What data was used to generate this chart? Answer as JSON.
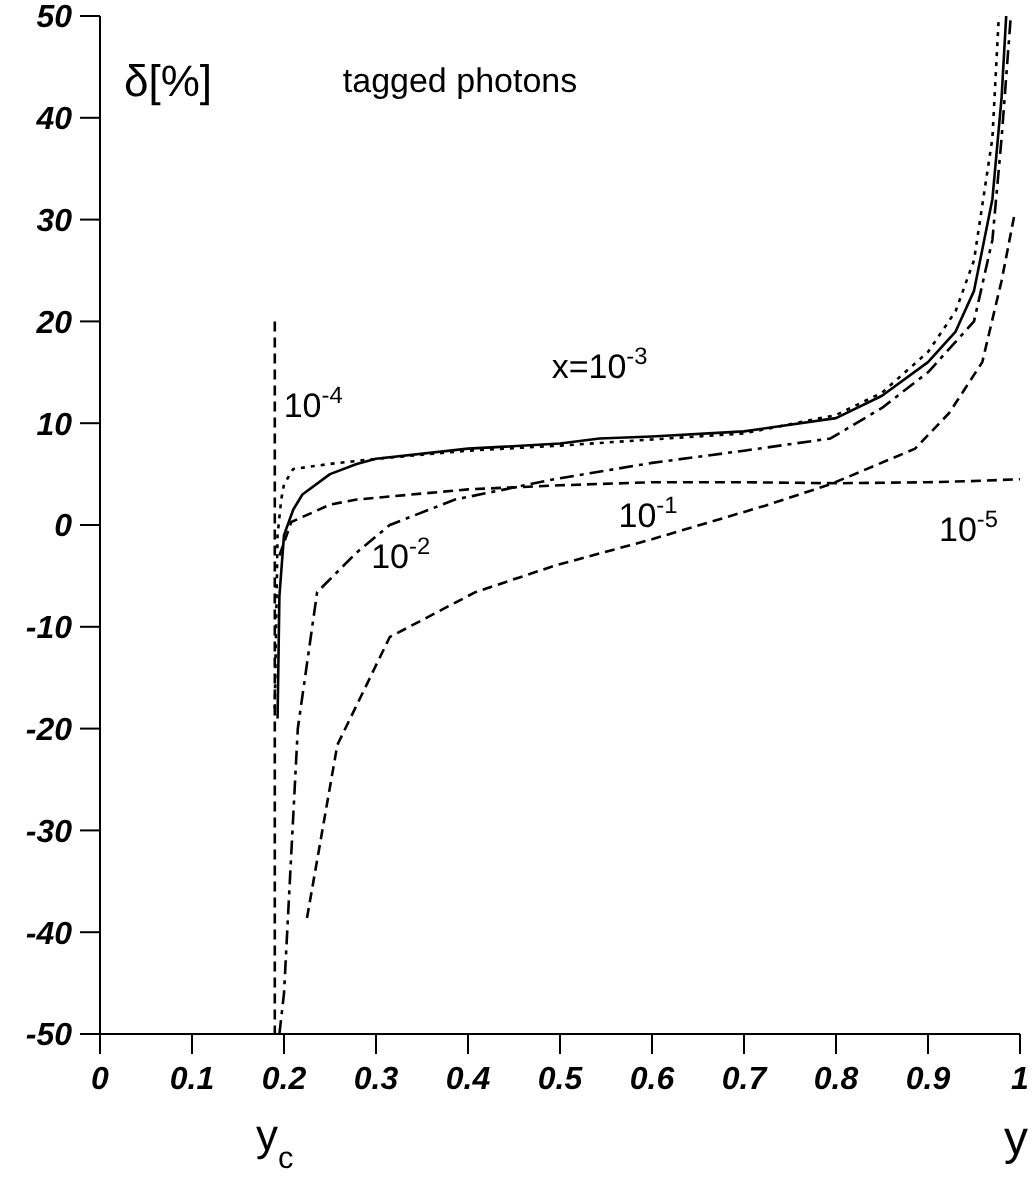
{
  "chart_data": {
    "type": "line",
    "title": "tagged photons",
    "xlabel": "y",
    "ylabel": "δ[%]",
    "xlim": [
      0,
      1
    ],
    "xticks": [
      0,
      0.1,
      0.2,
      0.3,
      0.4,
      0.5,
      0.6,
      0.7,
      0.8,
      0.9,
      1
    ],
    "ylim": [
      -50,
      50
    ],
    "yticks": [
      -50,
      -40,
      -30,
      -20,
      -10,
      0,
      10,
      20,
      30,
      40,
      50
    ],
    "grid": false,
    "legend": false,
    "marker": "none",
    "series": [
      {
        "color": "#000000",
        "line_style": "solid",
        "x": [
          0.193,
          0.195,
          0.2,
          0.21,
          0.22,
          0.25,
          0.279,
          0.3,
          0.4,
          0.5,
          0.543,
          0.6,
          0.7,
          0.8,
          0.85,
          0.9,
          0.93,
          0.95,
          0.97,
          0.98,
          0.985
        ],
        "values": [
          -19,
          -7,
          -1,
          1.5,
          3,
          5,
          6,
          6.5,
          7.5,
          8,
          8.5,
          8.7,
          9.2,
          10.5,
          12.7,
          16,
          19,
          23,
          32,
          42,
          50
        ]
      },
      {
        "color": "#000000",
        "line_style": "dotted",
        "x": [
          0.19,
          0.193,
          0.197,
          0.2,
          0.21,
          0.25,
          0.3,
          0.4,
          0.5,
          0.6,
          0.7,
          0.8,
          0.85,
          0.9,
          0.93,
          0.95,
          0.97,
          0.977
        ],
        "values": [
          -18,
          -1,
          2.5,
          4,
          5.5,
          6,
          6.5,
          7.3,
          7.8,
          8.4,
          9,
          10.8,
          13,
          17,
          21,
          26,
          38,
          50
        ]
      },
      {
        "color": "#000000",
        "line_style": "dashdot",
        "x": [
          0.195,
          0.2,
          0.215,
          0.236,
          0.279,
          0.315,
          0.386,
          0.494,
          0.6,
          0.7,
          0.794,
          0.85,
          0.9,
          0.95,
          0.97,
          0.98,
          0.99
        ],
        "values": [
          -50,
          -46,
          -20,
          -6.6,
          -2.7,
          0,
          2.5,
          4.5,
          6.1,
          7.3,
          8.5,
          11.5,
          15,
          20,
          28,
          38,
          50
        ]
      },
      {
        "color": "#000000",
        "line_style": "dashed",
        "x": [
          0.225,
          0.258,
          0.315,
          0.408,
          0.494,
          0.6,
          0.723,
          0.794,
          0.886,
          0.923,
          0.959,
          0.98,
          0.994
        ],
        "values": [
          -38.6,
          -21.6,
          -11,
          -6.6,
          -4,
          -1.4,
          1.9,
          4,
          7.5,
          11,
          16,
          24,
          30.5
        ]
      },
      {
        "color": "#000000",
        "line_style": "dashed",
        "x": [
          0.195,
          0.208,
          0.25,
          0.279,
          0.4,
          0.5,
          0.6,
          0.7,
          0.8,
          0.9,
          0.944,
          1
        ],
        "values": [
          -3,
          0.3,
          2,
          2.5,
          3.5,
          3.9,
          4.2,
          4.2,
          4.1,
          4.2,
          4.3,
          4.5
        ]
      },
      {
        "color": "#000000",
        "line_style": "dashed",
        "x": [
          0.19,
          0.19
        ],
        "values": [
          20,
          -50
        ]
      }
    ],
    "annotations": [
      {
        "text": "x=10$^{-3}$",
        "x": 0.543,
        "y": 8.5
      },
      {
        "text": "10$^{-4}$",
        "x": 0.21,
        "y": 5.5
      },
      {
        "text": "10$^{-2}$",
        "x": 0.279,
        "y": -2.7
      },
      {
        "text": "10$^{-1}$",
        "x": 0.6,
        "y": -1.4
      },
      {
        "text": "10$^{-5}$",
        "x": 0.944,
        "y": 4.3
      },
      {
        "text": "y$_{c}$",
        "x": 0.19,
        "y": -50
      }
    ]
  }
}
